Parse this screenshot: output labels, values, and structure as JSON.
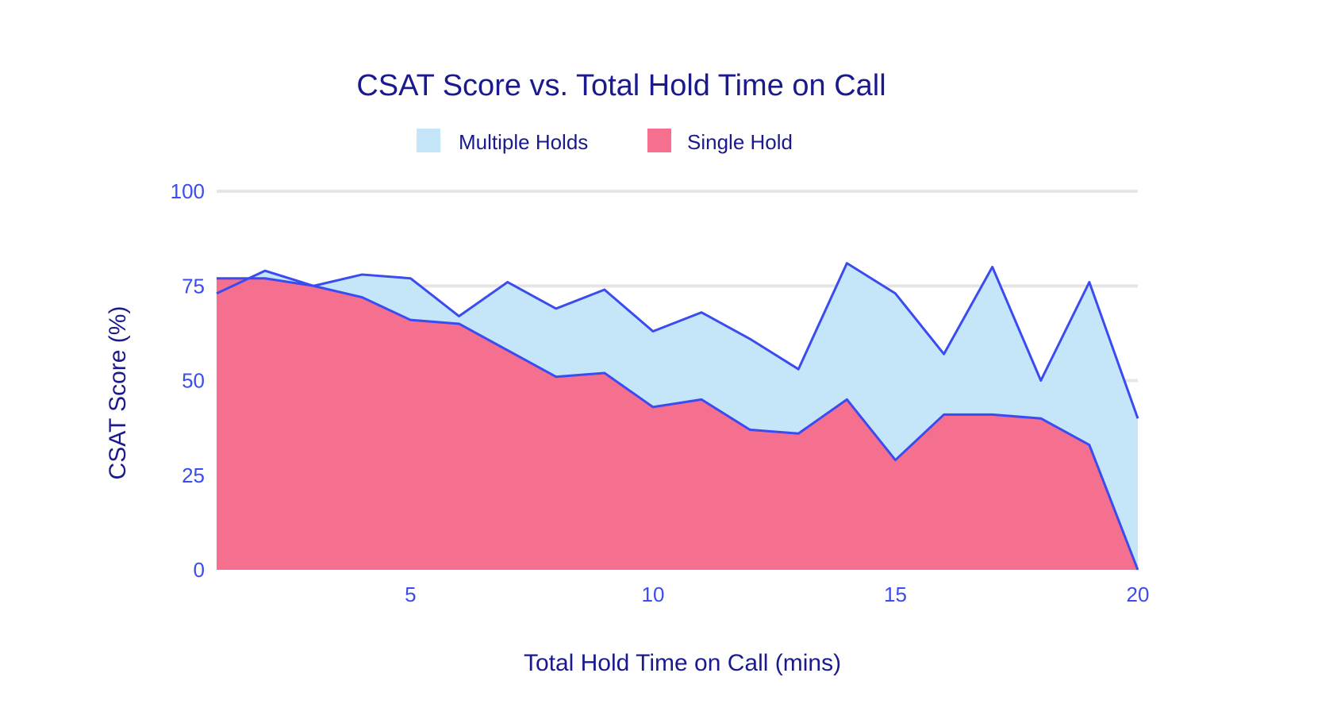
{
  "chart_data": {
    "type": "area",
    "title": "CSAT Score vs. Total Hold Time on Call",
    "xlabel": "Total Hold Time on Call (mins)",
    "ylabel": "CSAT Score (%)",
    "xlim": [
      1,
      20
    ],
    "ylim": [
      0,
      100
    ],
    "x": [
      1,
      2,
      3,
      4,
      5,
      6,
      7,
      8,
      9,
      10,
      11,
      12,
      13,
      14,
      15,
      16,
      17,
      18,
      19,
      20
    ],
    "x_ticks": [
      5,
      10,
      15,
      20
    ],
    "x_tick_labels": [
      "5",
      "10",
      "15",
      "20"
    ],
    "y_ticks": [
      0,
      25,
      50,
      75,
      100
    ],
    "y_tick_labels": [
      "0",
      "25",
      "50",
      "75",
      "100"
    ],
    "grid": true,
    "legend_position": "top",
    "series": [
      {
        "name": "Multiple Holds",
        "color": "#c5e5f8",
        "line_color": "#3a4cf0",
        "values": [
          73,
          79,
          75,
          78,
          77,
          67,
          76,
          69,
          74,
          63,
          68,
          61,
          53,
          81,
          73,
          57,
          80,
          50,
          76,
          40
        ]
      },
      {
        "name": "Single Hold",
        "color": "#f5708e",
        "line_color": "#3a4cf0",
        "values": [
          77,
          77,
          75,
          72,
          66,
          65,
          58,
          51,
          52,
          43,
          45,
          37,
          36,
          45,
          29,
          41,
          41,
          40,
          33,
          0
        ]
      }
    ]
  }
}
